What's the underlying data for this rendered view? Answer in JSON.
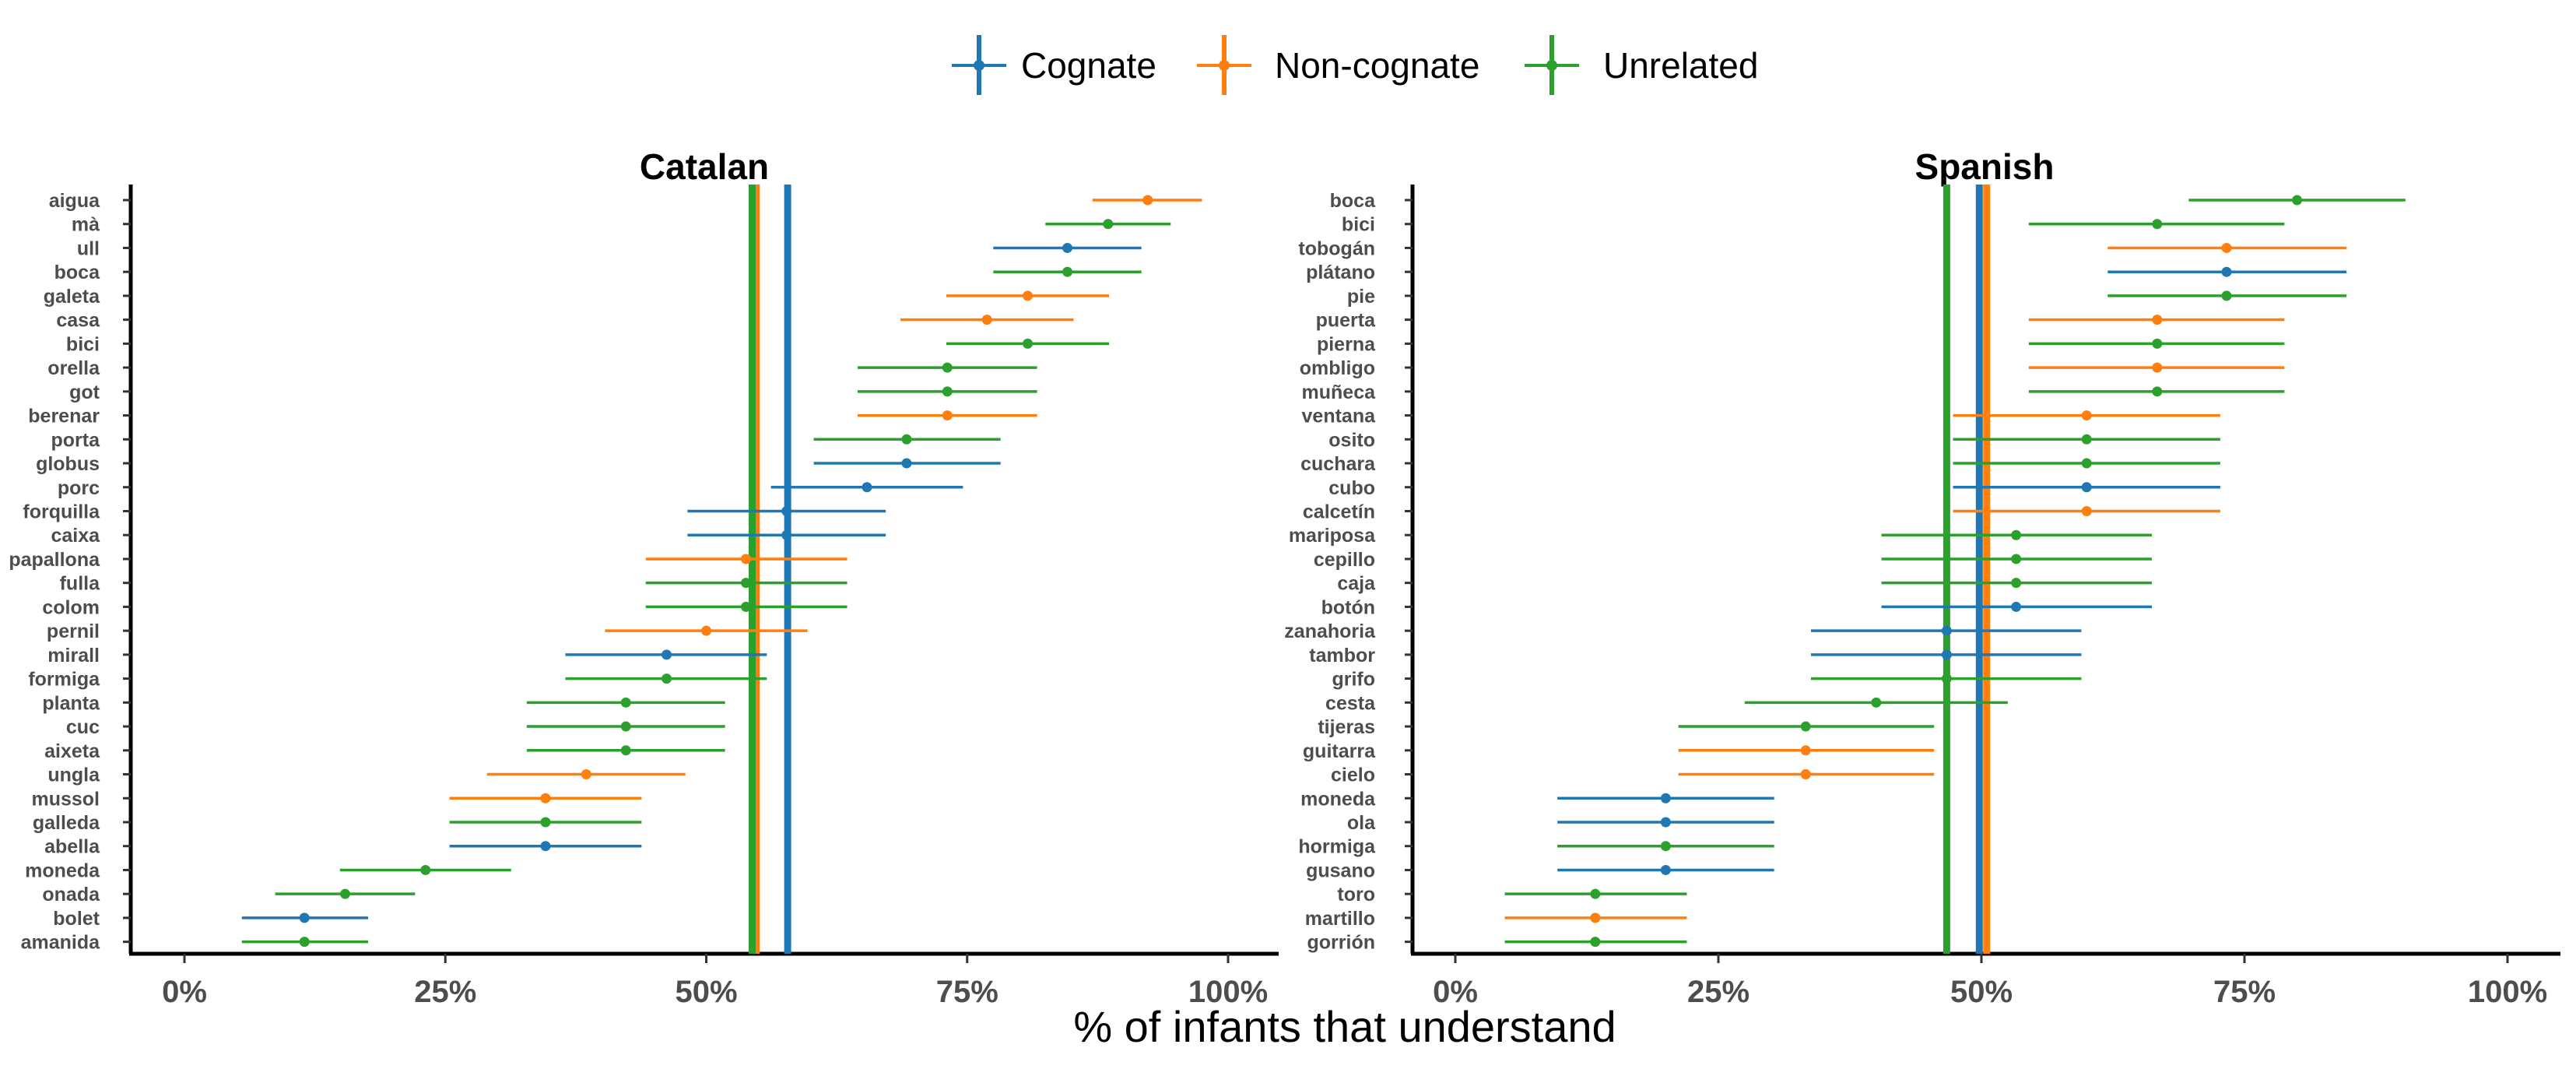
{
  "chart_data": {
    "type": "scatter",
    "xlabel": "% of infants that understand",
    "xlim": [
      0,
      1
    ],
    "x_ticks": [
      0,
      0.25,
      0.5,
      0.75,
      1
    ],
    "x_tick_labels": [
      "0%",
      "25%",
      "50%",
      "75%",
      "100%"
    ],
    "grid": false,
    "legend_placement": "top",
    "legend": [
      {
        "name": "Cognate",
        "color": "#1f77b4"
      },
      {
        "name": "Non-cognate",
        "color": "#ff7f0e"
      },
      {
        "name": "Unrelated",
        "color": "#2ca02c"
      }
    ],
    "panels": [
      {
        "title": "Catalan",
        "means": {
          "Cognate": 0.578,
          "Non-cognate": 0.548,
          "Unrelated": 0.544
        },
        "items": [
          {
            "word": "aigua",
            "group": "Non-cognate",
            "value": 0.923,
            "lo": 0.87,
            "hi": 0.975
          },
          {
            "word": "mà",
            "group": "Unrelated",
            "value": 0.885,
            "lo": 0.825,
            "hi": 0.945
          },
          {
            "word": "ull",
            "group": "Cognate",
            "value": 0.846,
            "lo": 0.775,
            "hi": 0.917
          },
          {
            "word": "boca",
            "group": "Unrelated",
            "value": 0.846,
            "lo": 0.775,
            "hi": 0.917
          },
          {
            "word": "galeta",
            "group": "Non-cognate",
            "value": 0.808,
            "lo": 0.73,
            "hi": 0.886
          },
          {
            "word": "casa",
            "group": "Non-cognate",
            "value": 0.769,
            "lo": 0.686,
            "hi": 0.852
          },
          {
            "word": "bici",
            "group": "Unrelated",
            "value": 0.808,
            "lo": 0.73,
            "hi": 0.886
          },
          {
            "word": "orella",
            "group": "Unrelated",
            "value": 0.731,
            "lo": 0.645,
            "hi": 0.817
          },
          {
            "word": "got",
            "group": "Unrelated",
            "value": 0.731,
            "lo": 0.645,
            "hi": 0.817
          },
          {
            "word": "berenar",
            "group": "Non-cognate",
            "value": 0.731,
            "lo": 0.645,
            "hi": 0.817
          },
          {
            "word": "porta",
            "group": "Unrelated",
            "value": 0.692,
            "lo": 0.603,
            "hi": 0.782
          },
          {
            "word": "globus",
            "group": "Cognate",
            "value": 0.692,
            "lo": 0.603,
            "hi": 0.782
          },
          {
            "word": "porc",
            "group": "Cognate",
            "value": 0.654,
            "lo": 0.562,
            "hi": 0.746
          },
          {
            "word": "forquilla",
            "group": "Cognate",
            "value": 0.577,
            "lo": 0.482,
            "hi": 0.672
          },
          {
            "word": "caixa",
            "group": "Cognate",
            "value": 0.577,
            "lo": 0.482,
            "hi": 0.672
          },
          {
            "word": "papallona",
            "group": "Non-cognate",
            "value": 0.538,
            "lo": 0.442,
            "hi": 0.635
          },
          {
            "word": "fulla",
            "group": "Unrelated",
            "value": 0.538,
            "lo": 0.442,
            "hi": 0.635
          },
          {
            "word": "colom",
            "group": "Unrelated",
            "value": 0.538,
            "lo": 0.442,
            "hi": 0.635
          },
          {
            "word": "pernil",
            "group": "Non-cognate",
            "value": 0.5,
            "lo": 0.403,
            "hi": 0.597
          },
          {
            "word": "mirall",
            "group": "Cognate",
            "value": 0.462,
            "lo": 0.365,
            "hi": 0.558
          },
          {
            "word": "formiga",
            "group": "Unrelated",
            "value": 0.462,
            "lo": 0.365,
            "hi": 0.558
          },
          {
            "word": "planta",
            "group": "Unrelated",
            "value": 0.423,
            "lo": 0.328,
            "hi": 0.518
          },
          {
            "word": "cuc",
            "group": "Unrelated",
            "value": 0.423,
            "lo": 0.328,
            "hi": 0.518
          },
          {
            "word": "aixeta",
            "group": "Unrelated",
            "value": 0.423,
            "lo": 0.328,
            "hi": 0.518
          },
          {
            "word": "ungla",
            "group": "Non-cognate",
            "value": 0.385,
            "lo": 0.29,
            "hi": 0.48
          },
          {
            "word": "mussol",
            "group": "Non-cognate",
            "value": 0.346,
            "lo": 0.254,
            "hi": 0.438
          },
          {
            "word": "galleda",
            "group": "Unrelated",
            "value": 0.346,
            "lo": 0.254,
            "hi": 0.438
          },
          {
            "word": "abella",
            "group": "Cognate",
            "value": 0.346,
            "lo": 0.254,
            "hi": 0.438
          },
          {
            "word": "moneda",
            "group": "Unrelated",
            "value": 0.231,
            "lo": 0.149,
            "hi": 0.313
          },
          {
            "word": "onada",
            "group": "Unrelated",
            "value": 0.154,
            "lo": 0.087,
            "hi": 0.221
          },
          {
            "word": "bolet",
            "group": "Cognate",
            "value": 0.115,
            "lo": 0.055,
            "hi": 0.176
          },
          {
            "word": "amanida",
            "group": "Unrelated",
            "value": 0.115,
            "lo": 0.055,
            "hi": 0.176
          }
        ]
      },
      {
        "title": "Spanish",
        "means": {
          "Cognate": 0.498,
          "Non-cognate": 0.505,
          "Unrelated": 0.467
        },
        "items": [
          {
            "word": "boca",
            "group": "Unrelated",
            "value": 0.8,
            "lo": 0.697,
            "hi": 0.903
          },
          {
            "word": "bici",
            "group": "Unrelated",
            "value": 0.667,
            "lo": 0.545,
            "hi": 0.788
          },
          {
            "word": "tobogán",
            "group": "Non-cognate",
            "value": 0.733,
            "lo": 0.62,
            "hi": 0.847
          },
          {
            "word": "plátano",
            "group": "Cognate",
            "value": 0.733,
            "lo": 0.62,
            "hi": 0.847
          },
          {
            "word": "pie",
            "group": "Unrelated",
            "value": 0.733,
            "lo": 0.62,
            "hi": 0.847
          },
          {
            "word": "puerta",
            "group": "Non-cognate",
            "value": 0.667,
            "lo": 0.545,
            "hi": 0.788
          },
          {
            "word": "pierna",
            "group": "Unrelated",
            "value": 0.667,
            "lo": 0.545,
            "hi": 0.788
          },
          {
            "word": "ombligo",
            "group": "Non-cognate",
            "value": 0.667,
            "lo": 0.545,
            "hi": 0.788
          },
          {
            "word": "muñeca",
            "group": "Unrelated",
            "value": 0.667,
            "lo": 0.545,
            "hi": 0.788
          },
          {
            "word": "ventana",
            "group": "Non-cognate",
            "value": 0.6,
            "lo": 0.473,
            "hi": 0.727
          },
          {
            "word": "osito",
            "group": "Unrelated",
            "value": 0.6,
            "lo": 0.473,
            "hi": 0.727
          },
          {
            "word": "cuchara",
            "group": "Unrelated",
            "value": 0.6,
            "lo": 0.473,
            "hi": 0.727
          },
          {
            "word": "cubo",
            "group": "Cognate",
            "value": 0.6,
            "lo": 0.473,
            "hi": 0.727
          },
          {
            "word": "calcetín",
            "group": "Non-cognate",
            "value": 0.6,
            "lo": 0.473,
            "hi": 0.727
          },
          {
            "word": "mariposa",
            "group": "Unrelated",
            "value": 0.533,
            "lo": 0.405,
            "hi": 0.662
          },
          {
            "word": "cepillo",
            "group": "Unrelated",
            "value": 0.533,
            "lo": 0.405,
            "hi": 0.662
          },
          {
            "word": "caja",
            "group": "Unrelated",
            "value": 0.533,
            "lo": 0.405,
            "hi": 0.662
          },
          {
            "word": "botón",
            "group": "Cognate",
            "value": 0.533,
            "lo": 0.405,
            "hi": 0.662
          },
          {
            "word": "zanahoria",
            "group": "Cognate",
            "value": 0.467,
            "lo": 0.338,
            "hi": 0.595
          },
          {
            "word": "tambor",
            "group": "Cognate",
            "value": 0.467,
            "lo": 0.338,
            "hi": 0.595
          },
          {
            "word": "grifo",
            "group": "Unrelated",
            "value": 0.467,
            "lo": 0.338,
            "hi": 0.595
          },
          {
            "word": "cesta",
            "group": "Unrelated",
            "value": 0.4,
            "lo": 0.275,
            "hi": 0.525
          },
          {
            "word": "tijeras",
            "group": "Unrelated",
            "value": 0.333,
            "lo": 0.212,
            "hi": 0.455
          },
          {
            "word": "guitarra",
            "group": "Non-cognate",
            "value": 0.333,
            "lo": 0.212,
            "hi": 0.455
          },
          {
            "word": "cielo",
            "group": "Non-cognate",
            "value": 0.333,
            "lo": 0.212,
            "hi": 0.455
          },
          {
            "word": "moneda",
            "group": "Cognate",
            "value": 0.2,
            "lo": 0.097,
            "hi": 0.303
          },
          {
            "word": "ola",
            "group": "Cognate",
            "value": 0.2,
            "lo": 0.097,
            "hi": 0.303
          },
          {
            "word": "hormiga",
            "group": "Unrelated",
            "value": 0.2,
            "lo": 0.097,
            "hi": 0.303
          },
          {
            "word": "gusano",
            "group": "Cognate",
            "value": 0.2,
            "lo": 0.097,
            "hi": 0.303
          },
          {
            "word": "toro",
            "group": "Unrelated",
            "value": 0.133,
            "lo": 0.047,
            "hi": 0.22
          },
          {
            "word": "martillo",
            "group": "Non-cognate",
            "value": 0.133,
            "lo": 0.047,
            "hi": 0.22
          },
          {
            "word": "gorrión",
            "group": "Unrelated",
            "value": 0.133,
            "lo": 0.047,
            "hi": 0.22
          }
        ]
      }
    ]
  }
}
